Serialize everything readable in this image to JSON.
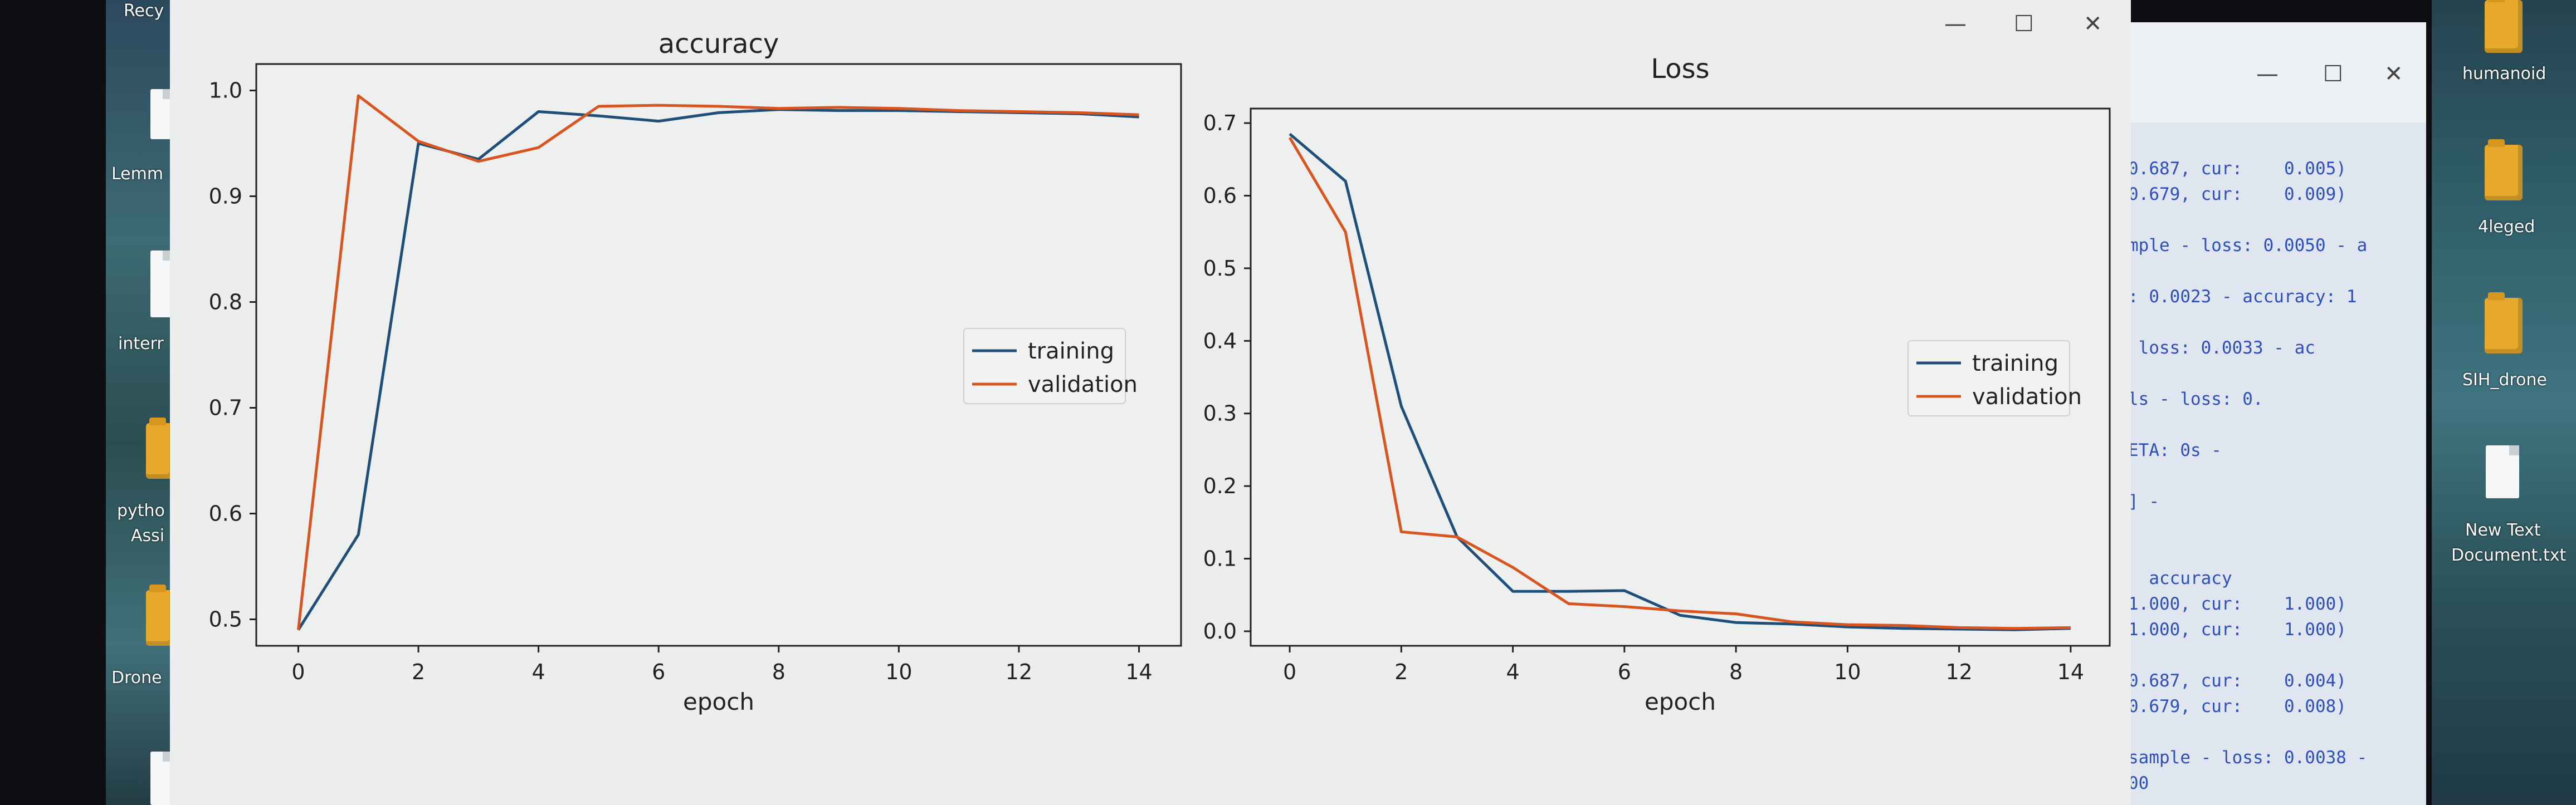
{
  "desktop": {
    "left_labels": [
      "Recy",
      "Lemm",
      "interr",
      "pytho",
      "Assi",
      "Drone"
    ],
    "right_labels": [
      "humanoid",
      "4leged",
      "SIH_drone",
      "New Text",
      "Document.txt"
    ]
  },
  "terminal": {
    "controls": {
      "minimize": "—",
      "maximize": "☐",
      "close": "✕"
    },
    "lines": [
      "0.687, cur:    0.005)",
      "0.679, cur:    0.009)",
      "",
      "mple - loss: 0.0050 - a",
      "",
      ": 0.0023 - accuracy: 1",
      "",
      " loss: 0.0033 - ac",
      "",
      "ls - loss: 0.",
      "",
      "ETA: 0s -",
      "",
      "] -",
      "",
      "",
      "  accuracy",
      "1.000, cur:    1.000)",
      "1.000, cur:    1.000)",
      "",
      "0.687, cur:    0.004)",
      "0.679, cur:    0.008)",
      "",
      "sample - loss: 0.0038 -",
      "00"
    ]
  },
  "window": {
    "controls": {
      "minimize": "—",
      "maximize": "☐",
      "close": "✕"
    }
  },
  "colors": {
    "training": "#1f4e79",
    "validation": "#d9541e"
  },
  "chart_data": [
    {
      "type": "line",
      "title": "accuracy",
      "xlabel": "epoch",
      "ylabel": "",
      "x": [
        0,
        1,
        2,
        3,
        4,
        5,
        6,
        7,
        8,
        9,
        10,
        11,
        12,
        13,
        14
      ],
      "xlim": [
        -0.7,
        14.7
      ],
      "ylim": [
        0.475,
        1.025
      ],
      "xticks": [
        0,
        2,
        4,
        6,
        8,
        10,
        12,
        14
      ],
      "yticks": [
        0.5,
        0.6,
        0.7,
        0.8,
        0.9,
        1.0
      ],
      "ytick_labels": [
        "0.5",
        "0.6",
        "0.7",
        "0.8",
        "0.9",
        "1.0"
      ],
      "legend_position": "center-right",
      "series": [
        {
          "name": "training",
          "values": [
            0.49,
            0.58,
            0.95,
            0.935,
            0.98,
            0.976,
            0.971,
            0.979,
            0.982,
            0.981,
            0.981,
            0.98,
            0.979,
            0.978,
            0.975
          ]
        },
        {
          "name": "validation",
          "values": [
            0.49,
            0.995,
            0.952,
            0.933,
            0.946,
            0.985,
            0.986,
            0.985,
            0.983,
            0.984,
            0.983,
            0.981,
            0.98,
            0.979,
            0.977
          ]
        }
      ]
    },
    {
      "type": "line",
      "title": "Loss",
      "xlabel": "epoch",
      "ylabel": "",
      "x": [
        0,
        1,
        2,
        3,
        4,
        5,
        6,
        7,
        8,
        9,
        10,
        11,
        12,
        13,
        14
      ],
      "xlim": [
        -0.7,
        14.7
      ],
      "ylim": [
        -0.02,
        0.72
      ],
      "xticks": [
        0,
        2,
        4,
        6,
        8,
        10,
        12,
        14
      ],
      "yticks": [
        0.0,
        0.1,
        0.2,
        0.3,
        0.4,
        0.5,
        0.6,
        0.7
      ],
      "ytick_labels": [
        "0.0",
        "0.1",
        "0.2",
        "0.3",
        "0.4",
        "0.5",
        "0.6",
        "0.7"
      ],
      "legend_position": "center-right",
      "series": [
        {
          "name": "training",
          "values": [
            0.685,
            0.62,
            0.31,
            0.13,
            0.055,
            0.055,
            0.056,
            0.022,
            0.012,
            0.01,
            0.006,
            0.004,
            0.003,
            0.002,
            0.004
          ]
        },
        {
          "name": "validation",
          "values": [
            0.68,
            0.55,
            0.137,
            0.13,
            0.088,
            0.038,
            0.034,
            0.028,
            0.024,
            0.013,
            0.009,
            0.008,
            0.005,
            0.004,
            0.005
          ]
        }
      ]
    }
  ]
}
